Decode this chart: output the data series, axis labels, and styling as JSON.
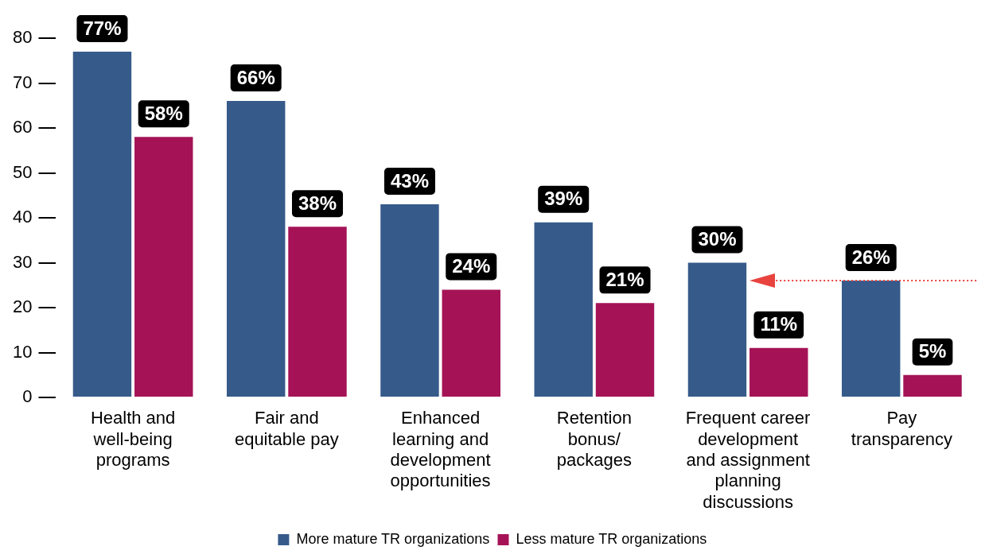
{
  "chart_data": {
    "type": "bar",
    "categories": [
      "Health and\nwell-being\nprograms",
      "Fair and\nequitable pay",
      "Enhanced\nlearning and\ndevelopment\nopportunities",
      "Retention\nbonus/\npackages",
      "Frequent career\ndevelopment\nand assignment\nplanning\ndiscussions",
      "Pay\ntransparency"
    ],
    "series": [
      {
        "name": "More mature TR organizations",
        "color": "#365b8a",
        "values": [
          77,
          66,
          43,
          39,
          30,
          26
        ],
        "value_labels": [
          "77%",
          "66%",
          "43%",
          "39%",
          "30%",
          "26%"
        ]
      },
      {
        "name": "Less mature TR organizations",
        "color": "#a51356",
        "values": [
          58,
          38,
          24,
          21,
          11,
          5
        ],
        "value_labels": [
          "58%",
          "38%",
          "24%",
          "21%",
          "11%",
          "5%"
        ]
      }
    ],
    "ylim": [
      0,
      80
    ],
    "yticks": [
      0,
      10,
      20,
      30,
      40,
      50,
      60,
      70,
      80
    ],
    "ref_lines": [
      {
        "axis": "y",
        "value": 26,
        "color": "#e8433e",
        "line_style": "dotted"
      }
    ],
    "grid": false,
    "legend": "bottom"
  }
}
